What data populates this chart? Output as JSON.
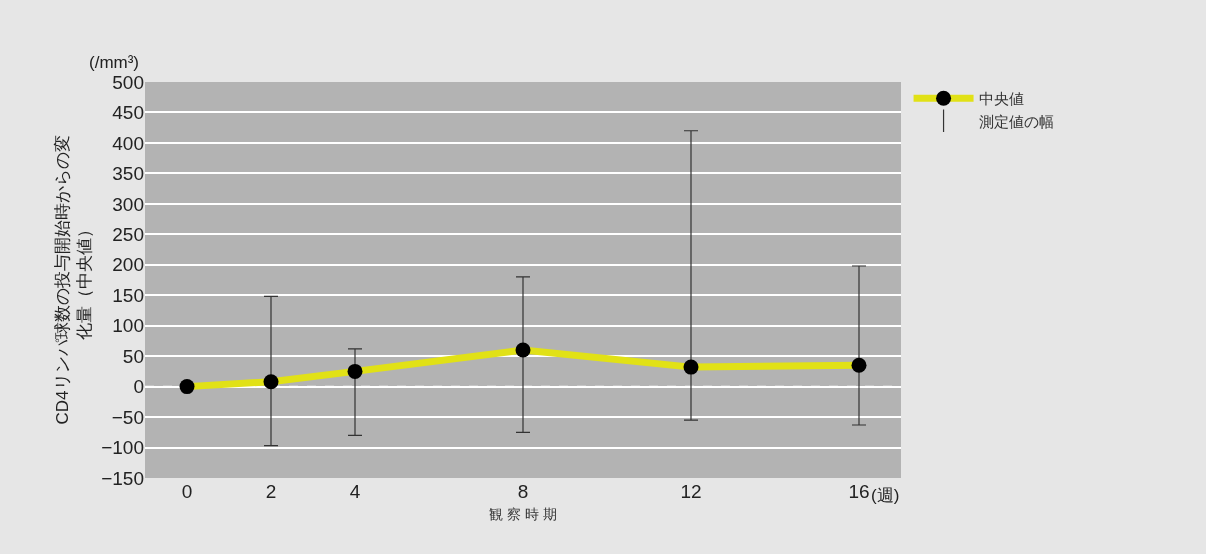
{
  "chart_data": {
    "type": "line",
    "ylabel": "CD4リンパ球数の投与開始時からの変化量（中央値）",
    "xlabel": "観 察 時 期",
    "x": [
      0,
      2,
      4,
      8,
      12,
      16
    ],
    "series": [
      {
        "name": "中央値",
        "color": "#e1e116",
        "values": [
          0,
          8,
          25,
          60,
          32,
          35
        ],
        "errors": [
          null,
          [
            -97,
            148
          ],
          [
            -80,
            62
          ],
          [
            -75,
            180
          ],
          [
            -55,
            420
          ],
          [
            -63,
            198
          ]
        ]
      }
    ],
    "annotations": [
      "(/mm³)",
      "(週)",
      "測定値の幅"
    ],
    "xlim": [
      -1,
      17
    ],
    "xticks": [
      0,
      2,
      4,
      8,
      12,
      16
    ],
    "ylim": [
      -150,
      500
    ],
    "yticks": [
      -150,
      -100,
      -50,
      0,
      50,
      100,
      150,
      200,
      250,
      300,
      350,
      400,
      450,
      500
    ],
    "ref_lines": [
      {
        "axis": "y",
        "value": 0,
        "color": "#ffffff",
        "line_style": "dashed"
      }
    ],
    "grid": "y",
    "legend": "top right",
    "marker": "circle",
    "line_style": "solid"
  }
}
